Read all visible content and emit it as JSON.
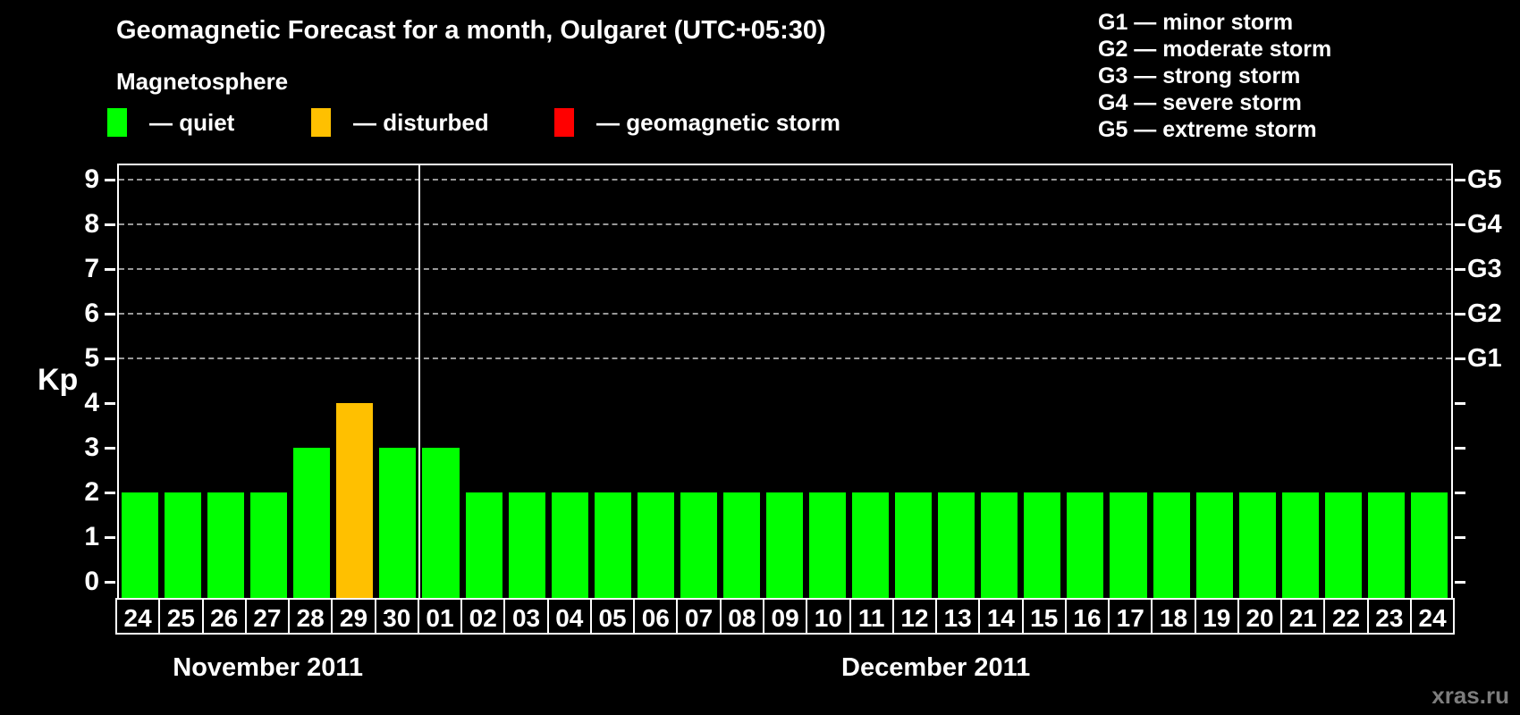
{
  "title": "Geomagnetic Forecast for a month, Oulgaret (UTC+05:30)",
  "magnetosphere_label": "Magnetosphere",
  "legend": {
    "items": [
      {
        "name": "quiet",
        "label": "— quiet",
        "color": "#00ff00"
      },
      {
        "name": "disturbed",
        "label": "— disturbed",
        "color": "#ffc000"
      },
      {
        "name": "storm",
        "label": "— geomagnetic storm",
        "color": "#ff0000"
      }
    ]
  },
  "g_scale_legend": {
    "lines": [
      "G1 — minor storm",
      "G2 — moderate storm",
      "G3 — strong storm",
      "G4 — severe storm",
      "G5 — extreme storm"
    ]
  },
  "watermark": "xras.ru",
  "chart_data": {
    "type": "bar",
    "title": "Geomagnetic Forecast for a month, Oulgaret (UTC+05:30)",
    "ylabel": "Kp",
    "ylim": [
      0,
      9
    ],
    "y_ticks": [
      0,
      1,
      2,
      3,
      4,
      5,
      6,
      7,
      8,
      9
    ],
    "gridlines_kp": [
      5,
      6,
      7,
      8,
      9
    ],
    "grid_style": "dashed horizontal lines at storm levels only",
    "right_axis_labels": [
      {
        "label": "G1",
        "kp": 5
      },
      {
        "label": "G2",
        "kp": 6
      },
      {
        "label": "G3",
        "kp": 7
      },
      {
        "label": "G4",
        "kp": 8
      },
      {
        "label": "G5",
        "kp": 9
      }
    ],
    "categories": [
      "24",
      "25",
      "26",
      "27",
      "28",
      "29",
      "30",
      "01",
      "02",
      "03",
      "04",
      "05",
      "06",
      "07",
      "08",
      "09",
      "10",
      "11",
      "12",
      "13",
      "14",
      "15",
      "16",
      "17",
      "18",
      "19",
      "20",
      "21",
      "22",
      "23",
      "24"
    ],
    "values": [
      2,
      2,
      2,
      2,
      3,
      4,
      3,
      3,
      2,
      2,
      2,
      2,
      2,
      2,
      2,
      2,
      2,
      2,
      2,
      2,
      2,
      2,
      2,
      2,
      2,
      2,
      2,
      2,
      2,
      2,
      2
    ],
    "statuses": [
      "quiet",
      "quiet",
      "quiet",
      "quiet",
      "quiet",
      "disturbed",
      "quiet",
      "quiet",
      "quiet",
      "quiet",
      "quiet",
      "quiet",
      "quiet",
      "quiet",
      "quiet",
      "quiet",
      "quiet",
      "quiet",
      "quiet",
      "quiet",
      "quiet",
      "quiet",
      "quiet",
      "quiet",
      "quiet",
      "quiet",
      "quiet",
      "quiet",
      "quiet",
      "quiet",
      "quiet"
    ],
    "status_colors": {
      "quiet": "#00ff00",
      "disturbed": "#ffc000",
      "storm": "#ff0000"
    },
    "months": [
      {
        "label": "November 2011",
        "days": 7
      },
      {
        "label": "December 2011",
        "days": 24
      }
    ],
    "legend_position": "top-left statuses, top-right G levels"
  }
}
